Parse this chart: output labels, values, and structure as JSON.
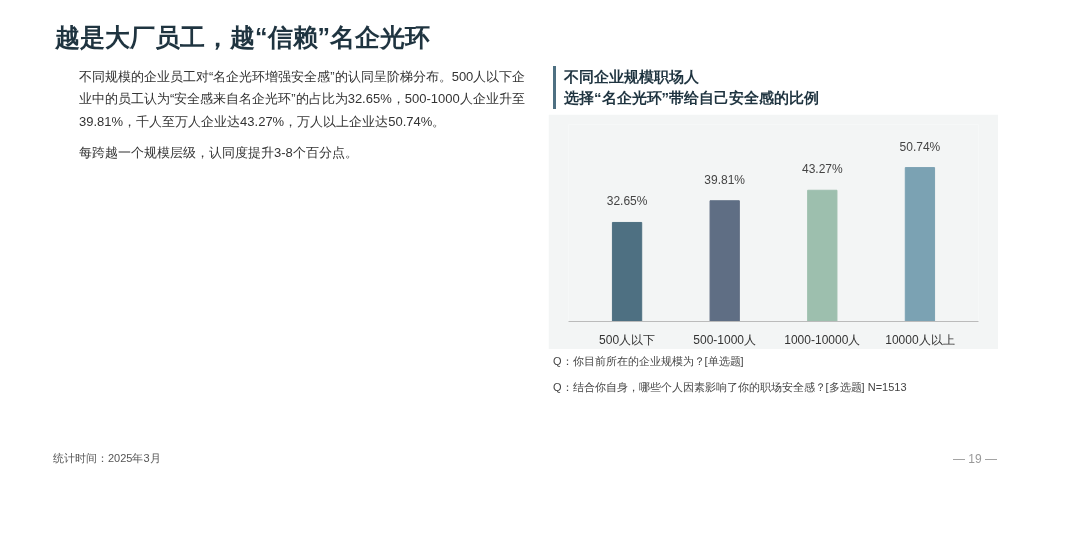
{
  "chart_data": {
    "type": "bar",
    "title": "不同企业规模职场人",
    "subtitle": "选择“名企光环”带给自己安全感的比例",
    "categories": [
      "500人以下",
      "500-1000人",
      "1000-10000人",
      "10000人以上"
    ],
    "values": [
      32.65,
      39.81,
      43.27,
      50.74
    ],
    "colors": [
      "#4e7082",
      "#5f6e84",
      "#9dbfae",
      "#7ba2b3"
    ],
    "value_labels": [
      "32.65%",
      "39.81%",
      "43.27%",
      "50.74%"
    ],
    "annotations": [
      "越是大厂员工，越“信赖”名企光环",
      "不同规模的企业员工对“名企光环增强安全感”的认同呈阶梯分布。500人以下企业中的员工认为“安全感来自名企光环”的占比为32.65%，500-1000人企业升至39.81%，千人至万人企业达43.27%，万人以上企业达50.74%。",
      "每跨越一个规模层级，认同度提升3-8个百分点。",
      "Q：你目前所在的企业规模为？[单选题]",
      "Q：结合你自身，哪些个人因素影响了你的职场安全感？[多选题]   N=1513",
      "统计时间：2025年3月",
      "— 19 —"
    ]
  }
}
